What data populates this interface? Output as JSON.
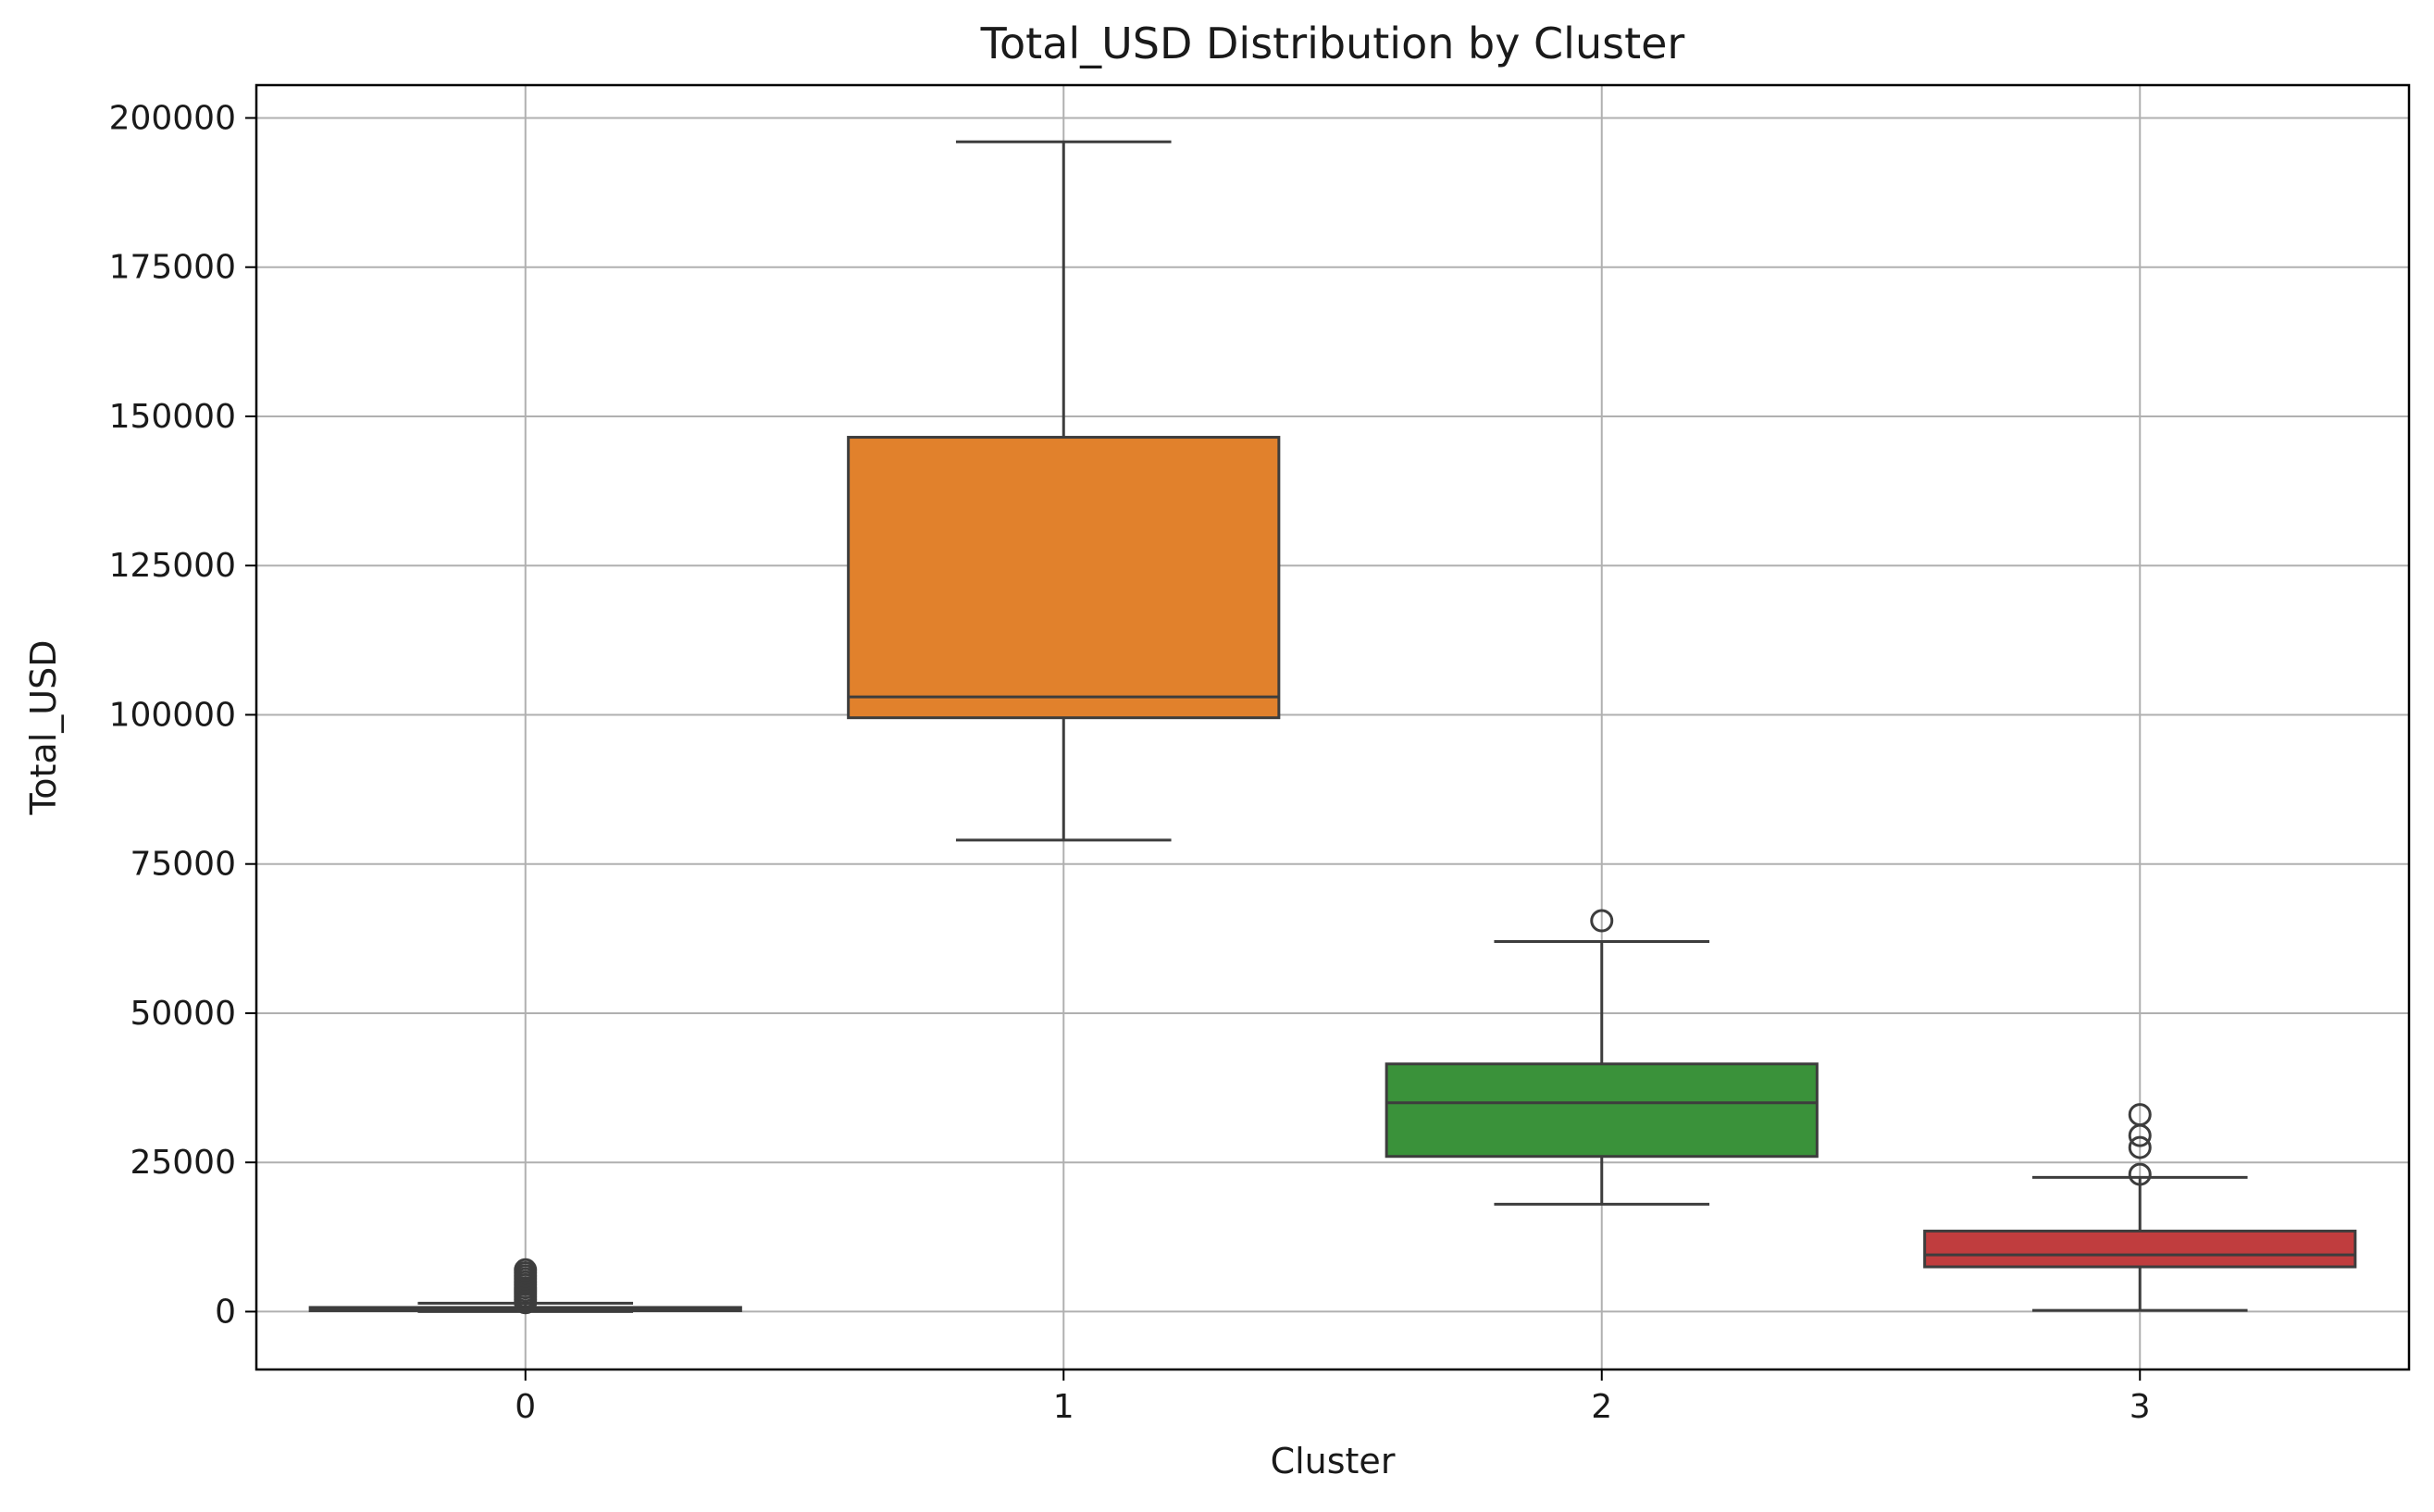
{
  "chart_data": {
    "type": "box",
    "title": "Total_USD Distribution by Cluster",
    "xlabel": "Cluster",
    "ylabel": "Total_USD",
    "ylim": [
      -9700,
      205500
    ],
    "yticks": [
      0,
      25000,
      50000,
      75000,
      100000,
      125000,
      150000,
      175000,
      200000
    ],
    "ytick_labels": [
      "0",
      "25000",
      "50000",
      "75000",
      "100000",
      "125000",
      "150000",
      "175000",
      "200000"
    ],
    "grid": true,
    "categories": [
      "0",
      "1",
      "2",
      "3"
    ],
    "boxes": [
      {
        "cluster": "0",
        "color": "#3274a1",
        "whisker_low": 0,
        "q1": 150,
        "median": 350,
        "q3": 700,
        "whisker_high": 1400,
        "outliers": [
          1500,
          2000,
          2500,
          3000,
          3500,
          4000,
          4500,
          5000,
          5500,
          6000,
          6500,
          7000
        ]
      },
      {
        "cluster": "1",
        "color": "#e1812c",
        "whisker_low": 79000,
        "q1": 99500,
        "median": 103000,
        "q3": 146500,
        "whisker_high": 196000,
        "outliers": []
      },
      {
        "cluster": "2",
        "color": "#3a923a",
        "whisker_low": 18000,
        "q1": 26000,
        "median": 35000,
        "q3": 41500,
        "whisker_high": 62000,
        "outliers": [
          65500
        ]
      },
      {
        "cluster": "3",
        "color": "#c03d3e",
        "whisker_low": 200,
        "q1": 7500,
        "median": 9500,
        "q3": 13500,
        "whisker_high": 22500,
        "outliers": [
          23000,
          27500,
          29500,
          33000
        ]
      }
    ]
  }
}
